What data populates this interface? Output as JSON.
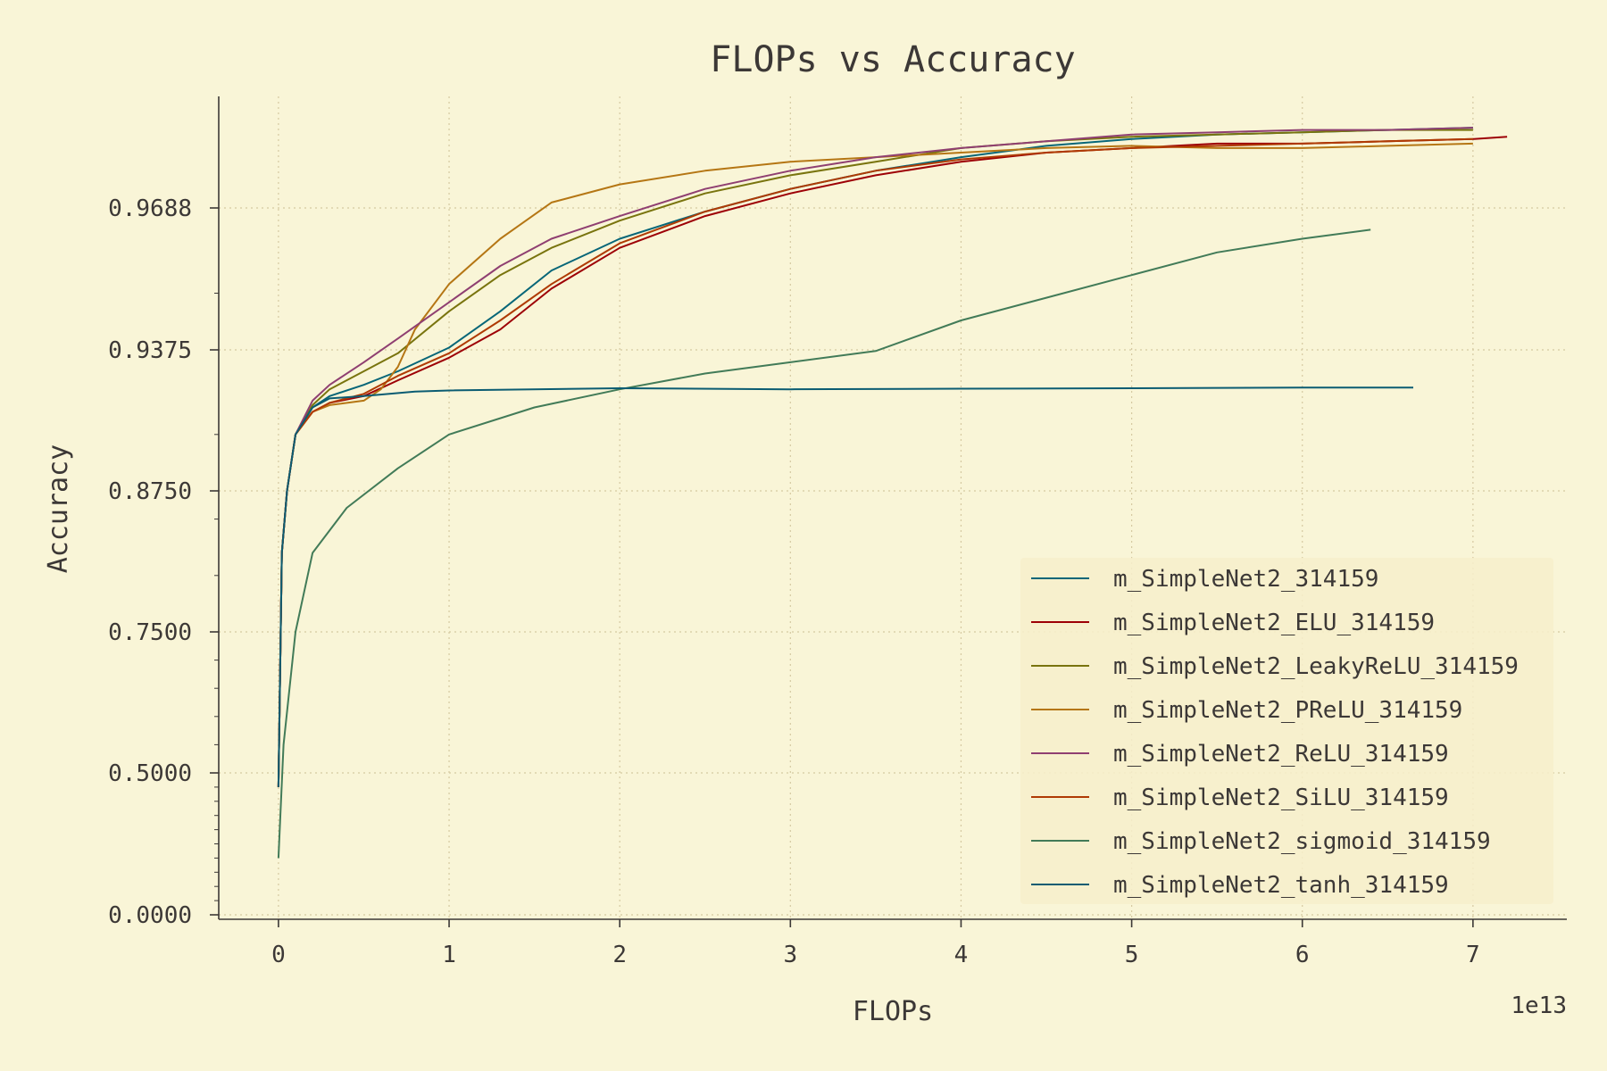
{
  "chart_data": {
    "type": "line",
    "title": "FLOPs vs Accuracy",
    "xlabel": "FLOPs",
    "ylabel": "Accuracy",
    "x_offset_label": "1e13",
    "xlim": [
      -0.35,
      7.55
    ],
    "x_ticks": [
      0,
      1,
      2,
      3,
      4,
      5,
      6,
      7
    ],
    "x_tick_labels": [
      "0",
      "1",
      "2",
      "3",
      "4",
      "5",
      "6",
      "7"
    ],
    "y_ticks": [
      0.0,
      0.5,
      0.75,
      0.875,
      0.9375,
      0.9688
    ],
    "y_tick_labels": [
      "0.0000",
      "0.5000",
      "0.7500",
      "0.8750",
      "0.9375",
      "0.9688"
    ],
    "y_scale": "logit-like (upper region expanded)",
    "grid": true,
    "legend_position": "lower-right",
    "series": [
      {
        "name": "m_SimpleNet2_314159",
        "color": "#076678",
        "points": [
          [
            0,
            0.45
          ],
          [
            0.02,
            0.82
          ],
          [
            0.05,
            0.875
          ],
          [
            0.1,
            0.9
          ],
          [
            0.2,
            0.912
          ],
          [
            0.3,
            0.917
          ],
          [
            0.5,
            0.922
          ],
          [
            0.7,
            0.928
          ],
          [
            1.0,
            0.938
          ],
          [
            1.3,
            0.946
          ],
          [
            1.6,
            0.955
          ],
          [
            2.0,
            0.962
          ],
          [
            2.5,
            0.968
          ],
          [
            3.0,
            0.973
          ],
          [
            3.5,
            0.977
          ],
          [
            4.0,
            0.98
          ],
          [
            4.5,
            0.9825
          ],
          [
            5.0,
            0.984
          ],
          [
            5.5,
            0.985
          ],
          [
            6.0,
            0.9855
          ],
          [
            6.5,
            0.986
          ],
          [
            7.0,
            0.9865
          ]
        ]
      },
      {
        "name": "m_SimpleNet2_ELU_314159",
        "color": "#9d0006",
        "points": [
          [
            0,
            0.45
          ],
          [
            0.02,
            0.82
          ],
          [
            0.05,
            0.875
          ],
          [
            0.1,
            0.9
          ],
          [
            0.2,
            0.91
          ],
          [
            0.3,
            0.914
          ],
          [
            0.5,
            0.917
          ],
          [
            0.7,
            0.924
          ],
          [
            1.0,
            0.934
          ],
          [
            1.3,
            0.942
          ],
          [
            1.6,
            0.951
          ],
          [
            2.0,
            0.96
          ],
          [
            2.5,
            0.967
          ],
          [
            3.0,
            0.972
          ],
          [
            3.5,
            0.976
          ],
          [
            4.0,
            0.979
          ],
          [
            4.5,
            0.981
          ],
          [
            5.0,
            0.982
          ],
          [
            5.5,
            0.983
          ],
          [
            6.0,
            0.983
          ],
          [
            6.5,
            0.9835
          ],
          [
            7.0,
            0.984
          ],
          [
            7.2,
            0.9845
          ]
        ]
      },
      {
        "name": "m_SimpleNet2_LeakyReLU_314159",
        "color": "#79740e",
        "points": [
          [
            0,
            0.45
          ],
          [
            0.02,
            0.82
          ],
          [
            0.05,
            0.875
          ],
          [
            0.1,
            0.9
          ],
          [
            0.2,
            0.913
          ],
          [
            0.3,
            0.92
          ],
          [
            0.5,
            0.928
          ],
          [
            0.7,
            0.936
          ],
          [
            1.0,
            0.946
          ],
          [
            1.3,
            0.954
          ],
          [
            1.6,
            0.96
          ],
          [
            2.0,
            0.966
          ],
          [
            2.5,
            0.972
          ],
          [
            3.0,
            0.976
          ],
          [
            3.5,
            0.979
          ],
          [
            4.0,
            0.982
          ],
          [
            4.5,
            0.9835
          ],
          [
            5.0,
            0.9845
          ],
          [
            5.5,
            0.985
          ],
          [
            6.0,
            0.9855
          ],
          [
            6.5,
            0.986
          ],
          [
            7.0,
            0.986
          ]
        ]
      },
      {
        "name": "m_SimpleNet2_PReLU_314159",
        "color": "#b57614",
        "points": [
          [
            0,
            0.45
          ],
          [
            0.02,
            0.82
          ],
          [
            0.05,
            0.875
          ],
          [
            0.1,
            0.9
          ],
          [
            0.2,
            0.91
          ],
          [
            0.3,
            0.913
          ],
          [
            0.5,
            0.915
          ],
          [
            0.6,
            0.92
          ],
          [
            0.7,
            0.93
          ],
          [
            0.8,
            0.942
          ],
          [
            1.0,
            0.952
          ],
          [
            1.3,
            0.962
          ],
          [
            1.6,
            0.97
          ],
          [
            2.0,
            0.974
          ],
          [
            2.5,
            0.977
          ],
          [
            3.0,
            0.979
          ],
          [
            3.5,
            0.98
          ],
          [
            4.0,
            0.981
          ],
          [
            4.5,
            0.982
          ],
          [
            5.0,
            0.9825
          ],
          [
            5.5,
            0.982
          ],
          [
            6.0,
            0.982
          ],
          [
            6.5,
            0.9825
          ],
          [
            7.0,
            0.983
          ]
        ]
      },
      {
        "name": "m_SimpleNet2_ReLU_314159",
        "color": "#8f3f71",
        "points": [
          [
            0,
            0.45
          ],
          [
            0.02,
            0.82
          ],
          [
            0.05,
            0.875
          ],
          [
            0.1,
            0.9
          ],
          [
            0.2,
            0.915
          ],
          [
            0.3,
            0.922
          ],
          [
            0.5,
            0.932
          ],
          [
            0.7,
            0.94
          ],
          [
            1.0,
            0.948
          ],
          [
            1.3,
            0.956
          ],
          [
            1.6,
            0.962
          ],
          [
            2.0,
            0.967
          ],
          [
            2.5,
            0.973
          ],
          [
            3.0,
            0.977
          ],
          [
            3.5,
            0.98
          ],
          [
            4.0,
            0.982
          ],
          [
            4.5,
            0.9835
          ],
          [
            5.0,
            0.985
          ],
          [
            5.5,
            0.9855
          ],
          [
            6.0,
            0.986
          ],
          [
            6.5,
            0.986
          ],
          [
            7.0,
            0.9865
          ]
        ]
      },
      {
        "name": "m_SimpleNet2_SiLU_314159",
        "color": "#af3a03",
        "points": [
          [
            0,
            0.45
          ],
          [
            0.02,
            0.82
          ],
          [
            0.05,
            0.875
          ],
          [
            0.1,
            0.9
          ],
          [
            0.2,
            0.91
          ],
          [
            0.3,
            0.914
          ],
          [
            0.5,
            0.918
          ],
          [
            0.7,
            0.926
          ],
          [
            1.0,
            0.936
          ],
          [
            1.3,
            0.944
          ],
          [
            1.6,
            0.952
          ],
          [
            2.0,
            0.961
          ],
          [
            2.5,
            0.968
          ],
          [
            3.0,
            0.973
          ],
          [
            3.5,
            0.977
          ],
          [
            4.0,
            0.9795
          ],
          [
            4.5,
            0.981
          ],
          [
            5.0,
            0.982
          ],
          [
            5.5,
            0.9825
          ],
          [
            6.0,
            0.983
          ],
          [
            6.5,
            0.9835
          ],
          [
            7.0,
            0.984
          ]
        ]
      },
      {
        "name": "m_SimpleNet2_sigmoid_314159",
        "color": "#427b58",
        "points": [
          [
            0,
            0.2
          ],
          [
            0.03,
            0.55
          ],
          [
            0.1,
            0.75
          ],
          [
            0.2,
            0.82
          ],
          [
            0.4,
            0.86
          ],
          [
            0.7,
            0.885
          ],
          [
            1.0,
            0.9
          ],
          [
            1.5,
            0.912
          ],
          [
            2.0,
            0.92
          ],
          [
            2.5,
            0.927
          ],
          [
            3.0,
            0.932
          ],
          [
            3.5,
            0.937
          ],
          [
            4.0,
            0.944
          ],
          [
            4.5,
            0.949
          ],
          [
            5.0,
            0.954
          ],
          [
            5.5,
            0.959
          ],
          [
            6.0,
            0.962
          ],
          [
            6.4,
            0.964
          ]
        ]
      },
      {
        "name": "m_SimpleNet2_tanh_314159",
        "color": "#0b5c72",
        "points": [
          [
            0,
            0.45
          ],
          [
            0.02,
            0.82
          ],
          [
            0.05,
            0.875
          ],
          [
            0.1,
            0.9
          ],
          [
            0.2,
            0.912
          ],
          [
            0.3,
            0.916
          ],
          [
            0.5,
            0.917
          ],
          [
            0.8,
            0.919
          ],
          [
            1.0,
            0.9195
          ],
          [
            2.0,
            0.9205
          ],
          [
            3.0,
            0.92
          ],
          [
            4.0,
            0.9203
          ],
          [
            5.0,
            0.9205
          ],
          [
            6.0,
            0.9208
          ],
          [
            6.65,
            0.9208
          ]
        ]
      }
    ]
  }
}
